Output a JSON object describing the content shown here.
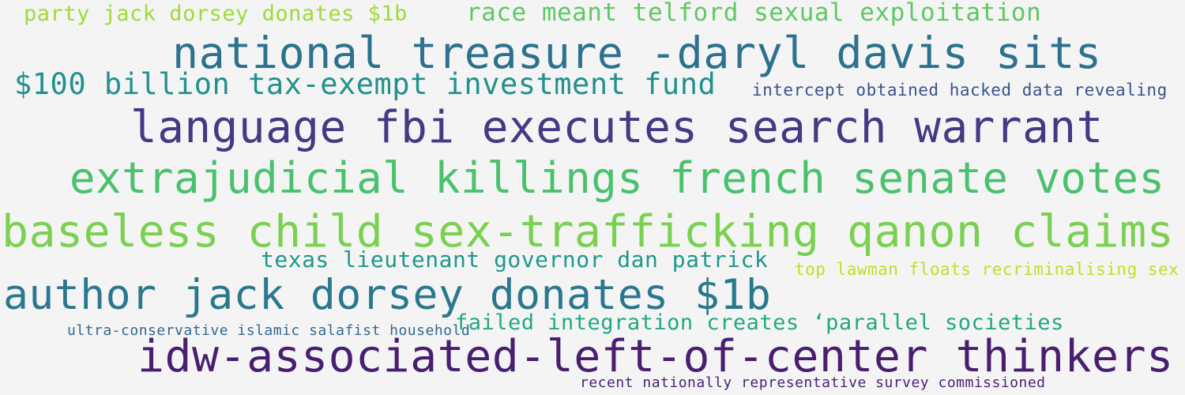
{
  "phrases": [
    {
      "text": "party jack dorsey donates $1b",
      "color": "#9fda3a"
    },
    {
      "text": "race meant telford sexual exploitation",
      "color": "#5ec962"
    },
    {
      "text": "national treasure -daryl davis sits",
      "color": "#2c728e"
    },
    {
      "text": "$100 billion tax-exempt investment fund",
      "color": "#21918c"
    },
    {
      "text": "intercept obtained hacked data revealing",
      "color": "#3b528b"
    },
    {
      "text": "language fbi executes search warrant",
      "color": "#443983"
    },
    {
      "text": "extrajudicial killings french senate votes",
      "color": "#4ac16d"
    },
    {
      "text": "baseless child sex-trafficking qanon claims",
      "color": "#7ad151"
    },
    {
      "text": "texas lieutenant governor dan patrick",
      "color": "#1f988b"
    },
    {
      "text": "top lawman floats recriminalising sex",
      "color": "#bddf26"
    },
    {
      "text": "author jack dorsey donates $1b",
      "color": "#2a788e"
    },
    {
      "text": "ultra-conservative islamic salafist household",
      "color": "#31688e"
    },
    {
      "text": "failed integration creates ‘parallel societies",
      "color": "#22a884"
    },
    {
      "text": "idw-associated-left-of-center thinkers",
      "color": "#481f70"
    },
    {
      "text": "recent nationally representative survey commissioned",
      "color": "#482475"
    }
  ]
}
